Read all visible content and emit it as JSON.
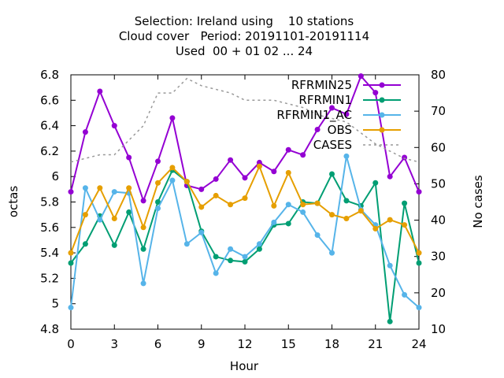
{
  "chart_data": {
    "type": "line",
    "title_lines": [
      "Selection: Ireland using    10 stations",
      "Cloud cover   Period: 20191101-20191114",
      "Used  00 + 01 02 ... 24"
    ],
    "xlabel": "Hour",
    "ylabel": "octas",
    "y2label": "No cases",
    "xlim": [
      0,
      24
    ],
    "ylim": [
      4.8,
      6.8
    ],
    "y2lim": [
      10,
      80
    ],
    "xticks": [
      0,
      3,
      6,
      9,
      12,
      15,
      18,
      21,
      24
    ],
    "xtick_labels": [
      "0",
      "3",
      "6",
      "9",
      "12",
      "15",
      "18",
      "21",
      "24"
    ],
    "yticks": [
      4.8,
      5,
      5.2,
      5.4,
      5.6,
      5.8,
      6,
      6.2,
      6.4,
      6.6,
      6.8
    ],
    "ytick_labels": [
      "4.8",
      "5",
      "5.2",
      "5.4",
      "5.6",
      "5.8",
      "6",
      "6.2",
      "6.4",
      "6.6",
      "6.8"
    ],
    "y2ticks": [
      10,
      20,
      30,
      40,
      50,
      60,
      70,
      80
    ],
    "y2tick_labels": [
      "10",
      "20",
      "30",
      "40",
      "50",
      "60",
      "70",
      "80"
    ],
    "grid": false,
    "legend_position": "top-right",
    "x": [
      0,
      1,
      2,
      3,
      4,
      5,
      6,
      7,
      8,
      9,
      10,
      11,
      12,
      13,
      14,
      15,
      16,
      17,
      18,
      19,
      20,
      21,
      22,
      23,
      24
    ],
    "series": [
      {
        "name": "RFRMIN25",
        "color": "#9400d3",
        "marker": "circle",
        "axis": "y1",
        "values": [
          5.88,
          6.35,
          6.67,
          6.4,
          6.15,
          5.81,
          6.12,
          6.46,
          5.93,
          5.9,
          5.98,
          6.13,
          5.99,
          6.11,
          6.04,
          6.21,
          6.17,
          6.37,
          6.54,
          6.49,
          6.79,
          6.66,
          6.0,
          6.15,
          5.88
        ]
      },
      {
        "name": "RFRMIN1",
        "color": "#009e73",
        "marker": "circle",
        "axis": "y1",
        "values": [
          5.32,
          5.47,
          5.69,
          5.46,
          5.72,
          5.43,
          5.8,
          6.05,
          5.96,
          5.57,
          5.37,
          5.34,
          5.33,
          5.43,
          5.62,
          5.63,
          5.8,
          5.79,
          6.02,
          5.81,
          5.77,
          5.95,
          4.86,
          5.79,
          5.32
        ]
      },
      {
        "name": "RFRMIN1_AC",
        "color": "#56b4e9",
        "marker": "circle",
        "axis": "y1",
        "values": [
          4.97,
          5.91,
          5.66,
          5.88,
          5.87,
          5.16,
          5.75,
          5.97,
          5.47,
          5.56,
          5.24,
          5.43,
          5.37,
          5.47,
          5.64,
          5.78,
          5.72,
          5.54,
          5.4,
          6.16,
          5.74,
          5.62,
          5.3,
          5.07,
          4.97
        ]
      },
      {
        "name": "OBS",
        "color": "#e69f00",
        "marker": "circle",
        "axis": "y1",
        "values": [
          5.4,
          5.7,
          5.91,
          5.67,
          5.91,
          5.6,
          5.95,
          6.07,
          5.96,
          5.76,
          5.85,
          5.78,
          5.83,
          6.08,
          5.77,
          6.03,
          5.78,
          5.79,
          5.7,
          5.67,
          5.73,
          5.59,
          5.66,
          5.62,
          5.4
        ]
      },
      {
        "name": "CASES",
        "color": "#999999",
        "marker": "none",
        "dashed": true,
        "axis": "y2",
        "values": [
          56,
          57,
          58,
          58,
          62,
          66,
          75,
          75,
          79,
          77,
          76,
          75,
          73,
          73,
          73,
          72,
          71,
          69,
          68,
          67,
          64,
          61,
          59,
          57,
          56
        ]
      }
    ]
  }
}
